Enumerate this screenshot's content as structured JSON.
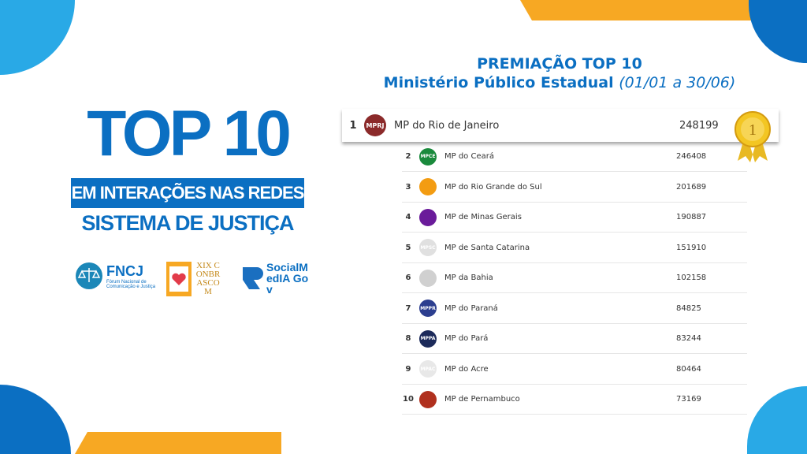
{
  "left": {
    "headline": "TOP 10",
    "banner": "EM INTERAÇÕES NAS REDES",
    "subtitle": "SISTEMA DE JUSTIÇA",
    "logos": [
      {
        "name": "FNCJ",
        "caption": "Fórum Nacional de Comunicação e Justiça"
      },
      {
        "name": "XIX CONBRASCOM"
      },
      {
        "name": "SocialMedIA Gov"
      }
    ]
  },
  "title": {
    "line1": "PREMIAÇÃO TOP 10",
    "line2": "Ministério Público Estadual",
    "period": "(01/01 a 30/06)"
  },
  "colors": {
    "brand_blue": "#0b6fc2",
    "light_blue": "#29a9e6",
    "orange": "#f7a823"
  },
  "ranking": [
    {
      "rank": "1",
      "name": "MP do Rio de Janeiro",
      "value": "248199",
      "logo": "MPRJ",
      "color": "#8b2a2a"
    },
    {
      "rank": "2",
      "name": "MP do Ceará",
      "value": "246408",
      "logo": "MPCE",
      "color": "#1a8a3c"
    },
    {
      "rank": "3",
      "name": "MP do Rio Grande do Sul",
      "value": "201689",
      "logo": "",
      "color": "#f39c12"
    },
    {
      "rank": "4",
      "name": "MP de Minas Gerais",
      "value": "190887",
      "logo": "",
      "color": "#6a1b9a"
    },
    {
      "rank": "5",
      "name": "MP de Santa Catarina",
      "value": "151910",
      "logo": "MPSC",
      "color": "#e0e0e0"
    },
    {
      "rank": "6",
      "name": "MP da Bahia",
      "value": "102158",
      "logo": "",
      "color": "#d0d0d0"
    },
    {
      "rank": "7",
      "name": "MP do Paraná",
      "value": "84825",
      "logo": "MPPR",
      "color": "#2c3e8f"
    },
    {
      "rank": "8",
      "name": "MP do Pará",
      "value": "83244",
      "logo": "MPPA",
      "color": "#1c2a5a"
    },
    {
      "rank": "9",
      "name": "MP do Acre",
      "value": "80464",
      "logo": "MPAC",
      "color": "#e8e8e8"
    },
    {
      "rank": "10",
      "name": "MP de Pernambuco",
      "value": "73169",
      "logo": "",
      "color": "#b0301e"
    }
  ],
  "medal": {
    "label": "1"
  }
}
